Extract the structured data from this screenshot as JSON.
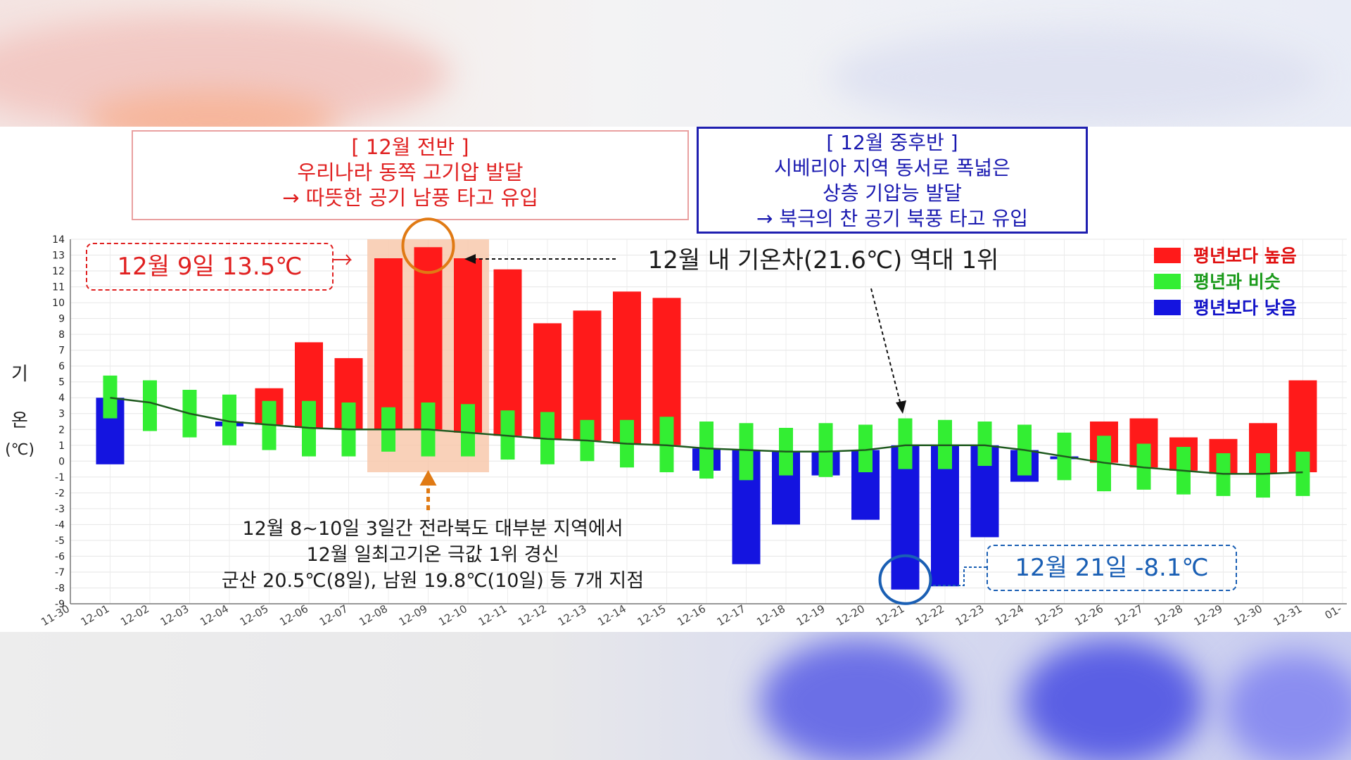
{
  "chart_data": {
    "type": "bar",
    "title": "",
    "ylabel": "기 온 (℃)",
    "ylabel_lines": [
      "기",
      "온",
      "(℃)"
    ],
    "ylim": [
      -9,
      14
    ],
    "yticks": [
      -9,
      -8,
      -7,
      -6,
      -5,
      -4,
      -3,
      -2,
      -1,
      0,
      1,
      2,
      3,
      4,
      5,
      6,
      7,
      8,
      9,
      10,
      11,
      12,
      13,
      14
    ],
    "grid": true,
    "legend_position": "top-right",
    "x_tick_labels": [
      "11-30",
      "12-01",
      "12-02",
      "12-03",
      "12-04",
      "12-05",
      "12-06",
      "12-07",
      "12-08",
      "12-09",
      "12-10",
      "12-11",
      "12-12",
      "12-13",
      "12-14",
      "12-15",
      "12-16",
      "12-17",
      "12-18",
      "12-19",
      "12-20",
      "12-21",
      "12-22",
      "12-23",
      "12-24",
      "12-25",
      "12-26",
      "12-27",
      "12-28",
      "12-29",
      "12-30",
      "12-31",
      "01-"
    ],
    "dates": [
      "12-01",
      "12-02",
      "12-03",
      "12-04",
      "12-05",
      "12-06",
      "12-07",
      "12-08",
      "12-09",
      "12-10",
      "12-11",
      "12-12",
      "12-13",
      "12-14",
      "12-15",
      "12-16",
      "12-17",
      "12-18",
      "12-19",
      "12-20",
      "12-21",
      "12-22",
      "12-23",
      "12-24",
      "12-25",
      "12-26",
      "12-27",
      "12-28",
      "12-29",
      "12-30",
      "12-31"
    ],
    "observed": [
      -0.2,
      3.7,
      3.0,
      2.2,
      4.6,
      7.5,
      6.5,
      12.8,
      13.5,
      12.8,
      12.1,
      8.7,
      9.5,
      10.7,
      10.3,
      -0.6,
      -6.5,
      -4.0,
      -0.9,
      -3.7,
      -8.1,
      -7.9,
      -4.8,
      -1.3,
      0.2,
      2.5,
      2.7,
      1.5,
      1.4,
      2.4,
      5.1
    ],
    "baseline": [
      4.0,
      3.7,
      3.0,
      2.5,
      2.3,
      2.1,
      2.0,
      2.0,
      2.0,
      1.8,
      1.6,
      1.4,
      1.3,
      1.1,
      1.0,
      0.8,
      0.7,
      0.6,
      0.6,
      0.7,
      1.0,
      1.0,
      1.0,
      0.7,
      0.3,
      -0.1,
      -0.4,
      -0.6,
      -0.8,
      -0.8,
      -0.7
    ],
    "category": [
      "below",
      "similar",
      "similar",
      "below",
      "above",
      "above",
      "above",
      "above",
      "above",
      "above",
      "above",
      "above",
      "above",
      "above",
      "above",
      "below",
      "below",
      "below",
      "below",
      "below",
      "below",
      "below",
      "below",
      "below",
      "below",
      "above",
      "above",
      "above",
      "above",
      "above",
      "above"
    ],
    "similar_range": [
      [
        2.7,
        5.4
      ],
      [
        1.9,
        5.1
      ],
      [
        1.5,
        4.5
      ],
      [
        1.0,
        4.2
      ],
      [
        0.7,
        3.8
      ],
      [
        0.3,
        3.8
      ],
      [
        0.3,
        3.7
      ],
      [
        0.6,
        3.4
      ],
      [
        0.3,
        3.7
      ],
      [
        0.3,
        3.6
      ],
      [
        0.1,
        3.2
      ],
      [
        -0.2,
        3.1
      ],
      [
        0.0,
        2.6
      ],
      [
        -0.4,
        2.6
      ],
      [
        -0.7,
        2.8
      ],
      [
        -1.1,
        2.5
      ],
      [
        -1.2,
        2.4
      ],
      [
        -0.9,
        2.1
      ],
      [
        -1.0,
        2.4
      ],
      [
        -0.7,
        2.3
      ],
      [
        -0.5,
        2.7
      ],
      [
        -0.5,
        2.6
      ],
      [
        -0.3,
        2.5
      ],
      [
        -0.9,
        2.3
      ],
      [
        -1.2,
        1.8
      ],
      [
        -1.9,
        1.6
      ],
      [
        -1.8,
        1.1
      ],
      [
        -2.1,
        0.9
      ],
      [
        -2.2,
        0.5
      ],
      [
        -2.3,
        0.5
      ],
      [
        -2.2,
        0.6
      ]
    ],
    "legend": [
      {
        "label": "평년보다 높음",
        "color": "#ff1a1a",
        "text_color": "#e01010"
      },
      {
        "label": "평년과    비슷",
        "color": "#33ee33",
        "text_color": "#1a9a1a"
      },
      {
        "label": "평년보다 낮음",
        "color": "#1414e0",
        "text_color": "#1414c8"
      }
    ],
    "colors": {
      "above": "#ff1a1a",
      "similar": "#33ee33",
      "below": "#1414e0",
      "line": "#1f5a1f",
      "highlight": "#f8c9ad",
      "circle": "#e07a14"
    }
  },
  "annotations": {
    "first_half": {
      "lines": [
        "[ 12월 전반 ]",
        "우리나라 동쪽 고기압 발달",
        "→ 따뜻한 공기 남풍 타고 유입"
      ],
      "color": "#e02020"
    },
    "late_half": {
      "lines": [
        "[ 12월 중후반 ]",
        "시베리아 지역 동서로 폭넓은",
        "상층 기압능 발달",
        "→ 북극의 찬 공기 북풍 타고 유입"
      ],
      "color": "#1a1ab0"
    },
    "max_callout": {
      "text": "12월 9일 13.5℃",
      "color": "#e02020"
    },
    "min_callout": {
      "text": "12월 21일 -8.1℃",
      "color": "#1a5fb4"
    },
    "range_note": {
      "text": "12월 내 기온차(21.6℃) 역대 1위"
    },
    "record_note": {
      "lines": [
        "12월 8~10일 3일간 전라북도 대부분 지역에서",
        "12월 일최고기온 극값 1위 경신",
        "군산 20.5℃(8일), 남원 19.8℃(10일) 등 7개 지점"
      ]
    }
  }
}
